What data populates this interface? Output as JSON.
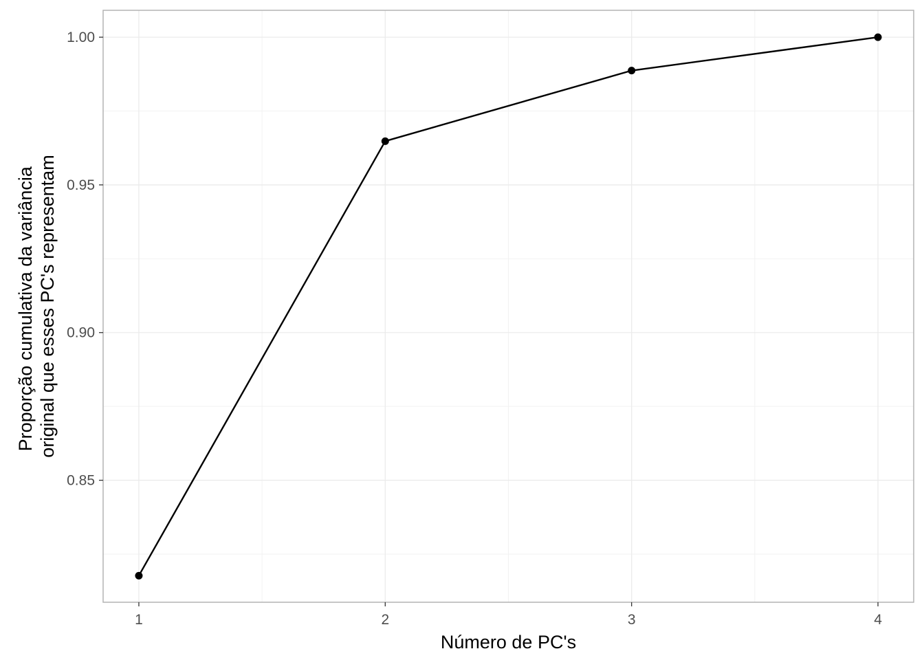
{
  "chart_data": {
    "type": "line",
    "x": [
      1,
      2,
      3,
      4
    ],
    "series": [
      {
        "values": [
          0.8177,
          0.9648,
          0.9887,
          1.0
        ]
      }
    ],
    "xlabel": "Número de PC's",
    "ylabel": [
      "Proporção cumulativa da variância",
      "original que esses PC's representam"
    ],
    "x_ticks": [
      1,
      2,
      3,
      4
    ],
    "x_tick_labels": [
      "1",
      "2",
      "3",
      "4"
    ],
    "y_ticks": [
      0.85,
      0.9,
      0.95,
      1.0
    ],
    "y_tick_labels": [
      "0.85",
      "0.90",
      "0.95",
      "1.00"
    ],
    "xlim": [
      0.855,
      4.145
    ],
    "ylim": [
      0.8087,
      1.0091
    ],
    "grid": true,
    "legend": "none",
    "colors": {
      "line": "#000000",
      "point": "#000000",
      "grid_major": "#ebebeb",
      "grid_minor": "#f2f2f2",
      "panel_border": "#b3b3b3",
      "tick_text": "#4d4d4d"
    }
  }
}
